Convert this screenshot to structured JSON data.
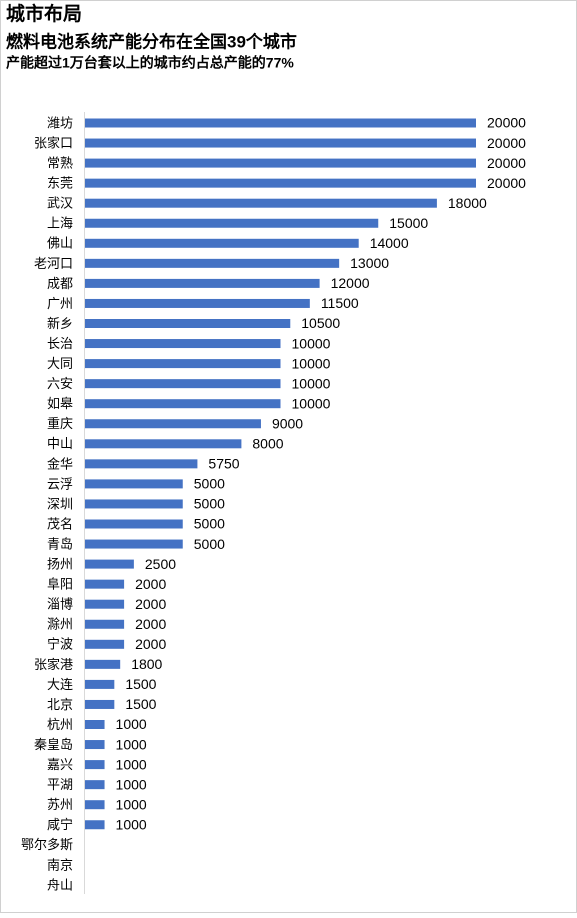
{
  "chart_data": {
    "type": "barh",
    "title": "城市布局",
    "subtitle": "燃料电池系统产能分布在全国39个城市",
    "annotation": "产能超过1万台套以上的城市约占总产能的77%",
    "color": "#4472c4",
    "categories": [
      "潍坊",
      "张家口",
      "常熟",
      "东莞",
      "武汉",
      "上海",
      "佛山",
      "老河口",
      "成都",
      "广州",
      "新乡",
      "长治",
      "大同",
      "六安",
      "如皋",
      "重庆",
      "中山",
      "金华",
      "云浮",
      "深圳",
      "茂名",
      "青岛",
      "扬州",
      "阜阳",
      "淄博",
      "滁州",
      "宁波",
      "张家港",
      "大连",
      "北京",
      "杭州",
      "秦皇岛",
      "嘉兴",
      "平湖",
      "苏州",
      "咸宁",
      "鄂尔多斯",
      "南京",
      "舟山"
    ],
    "values": [
      20000,
      20000,
      20000,
      20000,
      18000,
      15000,
      14000,
      13000,
      12000,
      11500,
      10500,
      10000,
      10000,
      10000,
      10000,
      9000,
      8000,
      5750,
      5000,
      5000,
      5000,
      5000,
      2500,
      2000,
      2000,
      2000,
      2000,
      1800,
      1500,
      1500,
      1000,
      1000,
      1000,
      1000,
      1000,
      1000,
      null,
      null,
      null
    ]
  }
}
